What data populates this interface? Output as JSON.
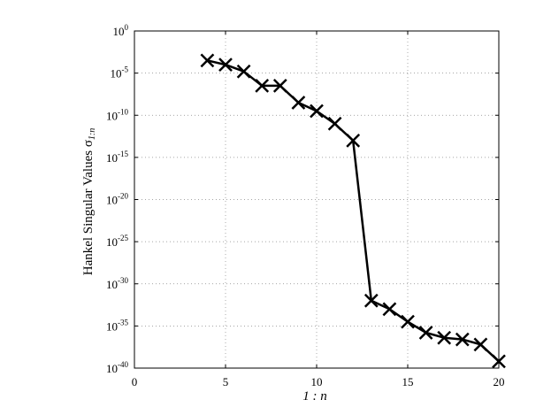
{
  "chart_data": {
    "type": "line",
    "xlabel": "1 : n",
    "ylabel": "Hankel Singular Values σ",
    "ylabel_sub": "1:n",
    "xlim": [
      0,
      20
    ],
    "ylim_log10": [
      -40,
      0
    ],
    "y_scale": "log",
    "grid": true,
    "x_ticks": [
      0,
      5,
      10,
      15,
      20
    ],
    "y_tick_base": "10",
    "y_tick_exponents": [
      "0",
      "-5",
      "-10",
      "-15",
      "-20",
      "-25",
      "-30",
      "-35",
      "-40"
    ],
    "marker": "x",
    "line_color": "#000000",
    "series": [
      {
        "x": [
          4,
          5,
          6,
          7,
          8,
          9,
          10,
          11,
          12,
          13,
          14,
          15,
          16,
          17,
          18,
          19,
          20
        ],
        "log10_y": [
          -3.5,
          -4.0,
          -4.8,
          -6.5,
          -6.5,
          -8.5,
          -9.5,
          -11.0,
          -13.0,
          -32.0,
          -33.0,
          -34.5,
          -35.8,
          -36.4,
          -36.6,
          -37.2,
          -39.2
        ]
      }
    ]
  }
}
